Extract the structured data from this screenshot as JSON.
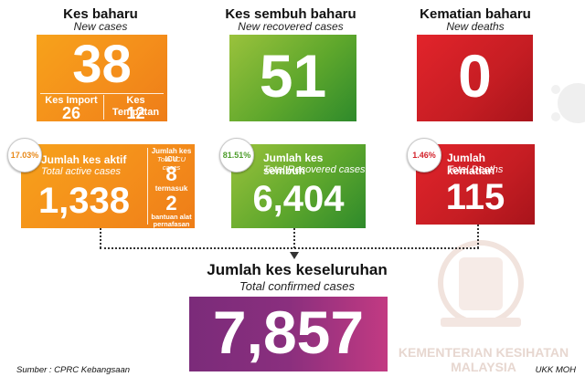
{
  "new_cases": {
    "title": "Kes baharu",
    "subtitle": "New cases",
    "value": "38",
    "import_label": "Kes Import",
    "import_value": "26",
    "local_label": "Kes Tempatan",
    "local_value": "12"
  },
  "recovered_new": {
    "title": "Kes sembuh baharu",
    "subtitle": "New recovered cases",
    "value": "51"
  },
  "deaths_new": {
    "title": "Kematian baharu",
    "subtitle": "New deaths",
    "value": "0"
  },
  "active": {
    "percent": "17.03%",
    "label": "Jumlah kes aktif",
    "label_en": "Total active cases",
    "value": "1,338",
    "icu_label": "Jumlah kes ICU",
    "icu_label_en": "Total ICU cases",
    "icu_value": "8",
    "including": "termasuk",
    "ventilator_value": "2",
    "ventilator_label": "bantuan alat pernafasan"
  },
  "recovered_total": {
    "percent": "81.51%",
    "label": "Jumlah kes sembuh",
    "label_en": "Total Recovered cases",
    "value": "6,404"
  },
  "deaths_total": {
    "percent": "1.46%",
    "label": "Jumlah kematian",
    "label_en": "Total Deaths",
    "value": "115"
  },
  "confirmed": {
    "label": "Jumlah kes keseluruhan",
    "label_en": "Total confirmed cases",
    "value": "7,857"
  },
  "footer": {
    "source": "Sumber : CPRC Kebangsaan",
    "credit": "UKK MOH"
  },
  "watermark": {
    "line1": "KEMENTERIAN KESIHATAN",
    "line2": "MALAYSIA"
  },
  "colors": {
    "orange": "#f48e1b",
    "green": "#4e9d2c",
    "red": "#d3212a",
    "purple": "#8a2f7e"
  }
}
